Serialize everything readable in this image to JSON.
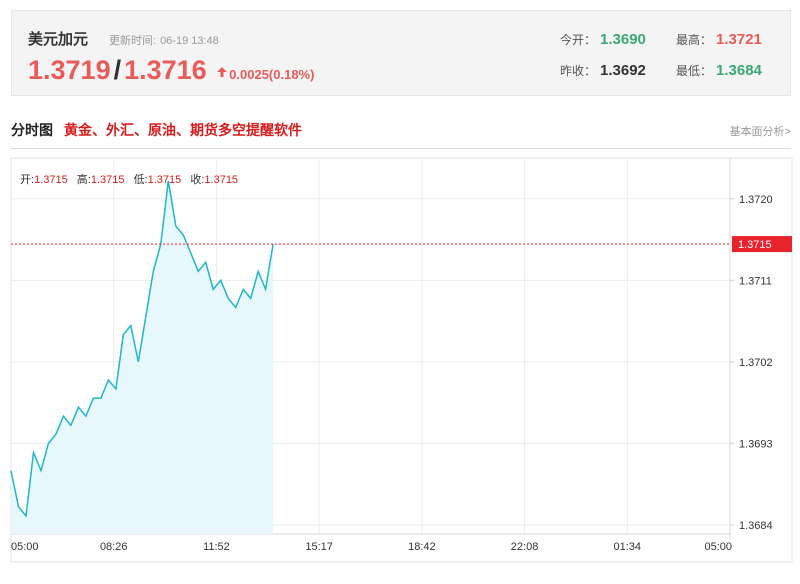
{
  "quote": {
    "pair_name": "美元加元",
    "update_label": "更新时间:",
    "update_time": "06-19 13:48",
    "bid": "1.3719",
    "separator": "/",
    "ask": "1.3716",
    "change": "0.0025(0.18%)",
    "open_label": "今开：",
    "open_value": "1.3690",
    "high_label": "最高：",
    "high_value": "1.3721",
    "prev_close_label": "昨收：",
    "prev_close_value": "1.3692",
    "low_label": "最低：",
    "low_value": "1.3684"
  },
  "section": {
    "title": "分时图",
    "promo": "黄金、外汇、原油、期货多空提醒软件",
    "analysis_link": "基本面分析>"
  },
  "ohlc": {
    "open_label": "开:",
    "open_value": "1.3715",
    "high_label": "高:",
    "high_value": "1.3715",
    "low_label": "低:",
    "low_value": "1.3715",
    "close_label": "收:",
    "close_value": "1.3715"
  },
  "colors": {
    "price_up": "#e85b59",
    "green": "#3aa776",
    "line": "#1fb6c8",
    "fill": "#e8f7fb",
    "current_tag": "#e8232b"
  },
  "chart_data": {
    "type": "area",
    "x_ticks": [
      "05:00",
      "08:26",
      "11:52",
      "15:17",
      "18:42",
      "22:08",
      "01:34",
      "05:00"
    ],
    "y_ticks": [
      1.3684,
      1.3693,
      1.3702,
      1.3711,
      1.372
    ],
    "ylim": [
      1.3683,
      1.37245
    ],
    "current_price": 1.3715,
    "current_label": "1.3715",
    "grid": true,
    "series": [
      {
        "x": [
          "05:00",
          "05:15",
          "05:30",
          "05:45",
          "06:00",
          "06:15",
          "06:30",
          "06:45",
          "07:00",
          "07:15",
          "07:30",
          "07:45",
          "08:00",
          "08:15",
          "08:30",
          "08:45",
          "09:00",
          "09:15",
          "09:30",
          "09:45",
          "10:00",
          "10:15",
          "10:30",
          "10:45",
          "11:00",
          "11:15",
          "11:30",
          "11:45",
          "12:00",
          "12:15",
          "12:30",
          "12:45",
          "13:00",
          "13:15",
          "13:30",
          "13:45"
        ],
        "values": [
          1.369,
          1.3686,
          1.3685,
          1.3692,
          1.369,
          1.3693,
          1.3694,
          1.3696,
          1.3695,
          1.3697,
          1.3696,
          1.3698,
          1.3698,
          1.37,
          1.3699,
          1.3705,
          1.3706,
          1.3702,
          1.3707,
          1.3712,
          1.3715,
          1.3722,
          1.3717,
          1.3716,
          1.3714,
          1.3712,
          1.3713,
          1.371,
          1.3711,
          1.3709,
          1.3708,
          1.371,
          1.3709,
          1.3712,
          1.371,
          1.3715
        ]
      }
    ]
  }
}
